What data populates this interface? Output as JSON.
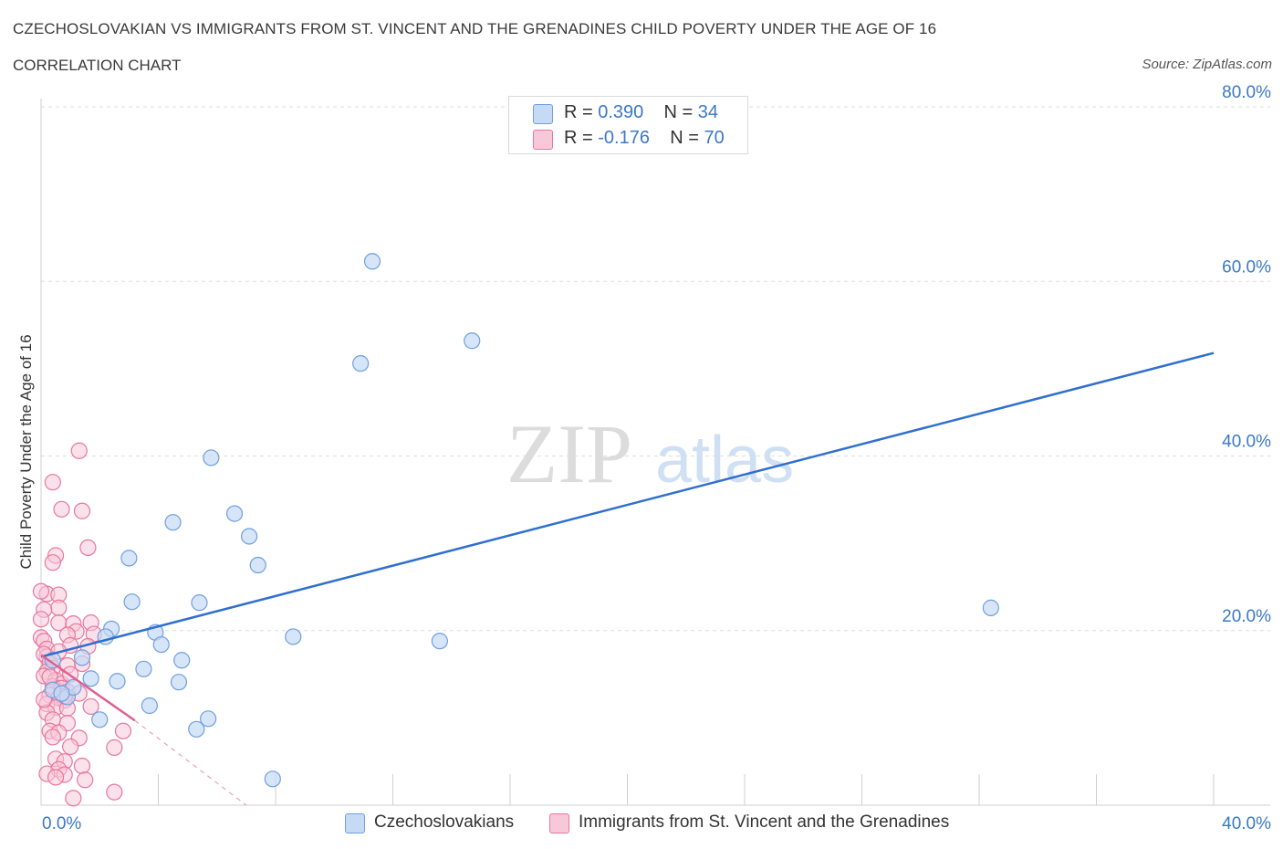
{
  "title": "CZECHOSLOVAKIAN VS IMMIGRANTS FROM ST. VINCENT AND THE GRENADINES CHILD POVERTY UNDER THE AGE OF 16",
  "subtitle": "CORRELATION CHART",
  "source": "Source: ZipAtlas.com",
  "watermark": {
    "zip": "ZIP",
    "atlas": "atlas"
  },
  "legend": {
    "series1": {
      "r_label": "R = ",
      "r_value": "0.390",
      "n_label": "N = ",
      "n_value": "34"
    },
    "series2": {
      "r_label": "R = ",
      "r_value": "-0.176",
      "n_label": "N = ",
      "n_value": "70"
    }
  },
  "chart_data": {
    "type": "scatter",
    "title": "CZECHOSLOVAKIAN VS IMMIGRANTS FROM ST. VINCENT AND THE GRENADINES CHILD POVERTY UNDER THE AGE OF 16",
    "xlabel": "",
    "ylabel": "Child Poverty Under the Age of 16",
    "xlim": [
      0,
      40
    ],
    "ylim": [
      0,
      80
    ],
    "x_tick_labels": [
      "0.0%",
      "40.0%"
    ],
    "y_tick_labels": [
      "20.0%",
      "40.0%",
      "60.0%",
      "80.0%"
    ],
    "y_ticks": [
      20,
      40,
      60,
      80
    ],
    "grid": true,
    "series": [
      {
        "name": "Czechoslovakians",
        "color": "#6f9fe0",
        "fill": "#c5daf5",
        "r": 0.39,
        "n": 34,
        "trend": {
          "x": [
            0,
            40
          ],
          "y": [
            17.0,
            51.8
          ],
          "style": "solid"
        },
        "points": [
          [
            11.3,
            62.3
          ],
          [
            14.7,
            53.2
          ],
          [
            10.9,
            50.6
          ],
          [
            5.8,
            39.8
          ],
          [
            6.6,
            33.4
          ],
          [
            4.5,
            32.4
          ],
          [
            7.1,
            30.8
          ],
          [
            7.4,
            27.5
          ],
          [
            3.0,
            28.3
          ],
          [
            3.1,
            23.3
          ],
          [
            5.4,
            23.2
          ],
          [
            8.6,
            19.3
          ],
          [
            3.9,
            19.8
          ],
          [
            2.4,
            20.2
          ],
          [
            4.1,
            18.4
          ],
          [
            2.2,
            19.3
          ],
          [
            1.4,
            16.9
          ],
          [
            13.6,
            18.8
          ],
          [
            32.4,
            22.6
          ],
          [
            3.5,
            15.6
          ],
          [
            4.8,
            16.6
          ],
          [
            1.7,
            14.5
          ],
          [
            2.6,
            14.2
          ],
          [
            4.7,
            14.1
          ],
          [
            0.4,
            16.6
          ],
          [
            0.9,
            12.4
          ],
          [
            0.4,
            13.2
          ],
          [
            1.1,
            13.5
          ],
          [
            3.7,
            11.4
          ],
          [
            2.0,
            9.8
          ],
          [
            5.7,
            9.9
          ],
          [
            5.3,
            8.7
          ],
          [
            7.9,
            3.0
          ],
          [
            0.7,
            12.8
          ]
        ]
      },
      {
        "name": "Immigrants from St. Vincent and the Grenadines",
        "color": "#e8779d",
        "fill": "#f7c9d8",
        "r": -0.176,
        "n": 70,
        "trend": {
          "x": [
            0,
            3.2
          ],
          "y": [
            17.2,
            9.7
          ],
          "style": "solid",
          "dashed_extension": {
            "x": [
              3.2,
              7.0
            ],
            "y": [
              9.7,
              0.0
            ]
          }
        },
        "points": [
          [
            1.3,
            40.6
          ],
          [
            0.4,
            37.0
          ],
          [
            0.7,
            33.9
          ],
          [
            1.4,
            33.7
          ],
          [
            1.6,
            29.5
          ],
          [
            0.5,
            28.6
          ],
          [
            0.4,
            27.8
          ],
          [
            0.2,
            24.2
          ],
          [
            0.6,
            24.1
          ],
          [
            0.0,
            24.5
          ],
          [
            0.6,
            22.6
          ],
          [
            0.1,
            22.4
          ],
          [
            0.0,
            21.3
          ],
          [
            0.6,
            20.9
          ],
          [
            1.1,
            20.8
          ],
          [
            1.7,
            20.9
          ],
          [
            1.2,
            19.9
          ],
          [
            0.9,
            19.5
          ],
          [
            1.8,
            19.6
          ],
          [
            0.0,
            19.2
          ],
          [
            0.1,
            18.8
          ],
          [
            1.0,
            18.3
          ],
          [
            1.6,
            18.2
          ],
          [
            0.2,
            17.9
          ],
          [
            0.2,
            17.0
          ],
          [
            0.1,
            17.3
          ],
          [
            0.3,
            16.3
          ],
          [
            1.4,
            16.2
          ],
          [
            0.9,
            16.0
          ],
          [
            0.4,
            15.7
          ],
          [
            0.2,
            15.3
          ],
          [
            0.1,
            14.8
          ],
          [
            0.5,
            14.3
          ],
          [
            0.7,
            13.9
          ],
          [
            0.4,
            13.6
          ],
          [
            0.7,
            13.4
          ],
          [
            0.9,
            13.0
          ],
          [
            0.3,
            12.6
          ],
          [
            1.3,
            12.8
          ],
          [
            0.6,
            12.3
          ],
          [
            0.8,
            12.0
          ],
          [
            0.2,
            11.6
          ],
          [
            0.5,
            11.2
          ],
          [
            1.7,
            11.3
          ],
          [
            0.9,
            11.1
          ],
          [
            0.2,
            10.6
          ],
          [
            0.4,
            9.8
          ],
          [
            0.9,
            9.4
          ],
          [
            0.3,
            8.5
          ],
          [
            0.6,
            8.3
          ],
          [
            2.8,
            8.5
          ],
          [
            0.4,
            7.8
          ],
          [
            1.3,
            7.7
          ],
          [
            1.0,
            6.7
          ],
          [
            2.5,
            6.6
          ],
          [
            0.5,
            5.3
          ],
          [
            0.8,
            5.0
          ],
          [
            1.4,
            4.5
          ],
          [
            0.6,
            4.1
          ],
          [
            0.2,
            3.6
          ],
          [
            0.8,
            3.5
          ],
          [
            0.5,
            3.2
          ],
          [
            1.5,
            2.9
          ],
          [
            2.5,
            1.5
          ],
          [
            1.1,
            0.8
          ],
          [
            0.3,
            14.7
          ],
          [
            1.0,
            15.0
          ],
          [
            0.6,
            17.6
          ],
          [
            0.1,
            12.1
          ],
          [
            0.8,
            12.5
          ]
        ]
      }
    ]
  },
  "bottom_legend": {
    "item1": "Czechoslovakians",
    "item2": "Immigrants from St. Vincent and the Grenadines"
  }
}
